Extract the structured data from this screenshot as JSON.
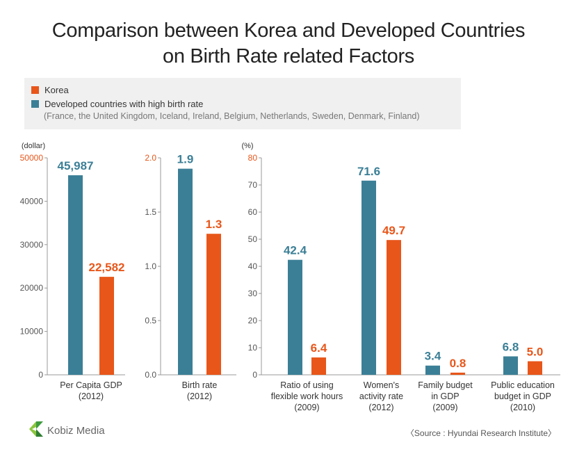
{
  "title_line1": "Comparison between Korea and Developed Countries",
  "title_line2": "on Birth Rate related Factors",
  "legend": {
    "korea": "Korea",
    "developed": "Developed countries with high birth rate",
    "note": "(France,  the United Kingdom,  Iceland,  Ireland,  Belgium,  Netherlands,  Sweden,  Denmark,  Finland)"
  },
  "colors": {
    "korea": "#e8561a",
    "developed": "#3b7f96"
  },
  "logo_text": "Kobiz Media",
  "source": "〈Source : Hyundai Research Institute〉",
  "chart_data": [
    {
      "type": "bar",
      "ylabel": "(dollar)",
      "ylim": [
        0,
        50000
      ],
      "yticks": [
        "0",
        "10000",
        "20000",
        "30000",
        "40000",
        "50000"
      ],
      "categories": [
        [
          "Per Capita GDP",
          "(2012)"
        ]
      ],
      "series": [
        {
          "name": "Developed countries with high birth rate",
          "values": [
            45987
          ],
          "labels": [
            "45,987"
          ]
        },
        {
          "name": "Korea",
          "values": [
            22582
          ],
          "labels": [
            "22,582"
          ]
        }
      ]
    },
    {
      "type": "bar",
      "ylabel": "",
      "ylim": [
        0,
        2.0
      ],
      "yticks": [
        "0.0",
        "0.5",
        "1.0",
        "1.5",
        "2.0"
      ],
      "categories": [
        [
          "Birth rate",
          "(2012)"
        ]
      ],
      "series": [
        {
          "name": "Developed countries with high birth rate",
          "values": [
            1.9
          ],
          "labels": [
            "1.9"
          ]
        },
        {
          "name": "Korea",
          "values": [
            1.3
          ],
          "labels": [
            "1.3"
          ]
        }
      ]
    },
    {
      "type": "bar",
      "ylabel": "(%)",
      "ylim": [
        0,
        80
      ],
      "yticks": [
        "0",
        "10",
        "20",
        "30",
        "40",
        "50",
        "60",
        "70",
        "80"
      ],
      "categories": [
        [
          "Ratio of using",
          "flexible work hours",
          "(2009)"
        ],
        [
          "Women's",
          "activity rate",
          "(2012)"
        ],
        [
          "Family budget",
          "in GDP",
          "(2009)"
        ],
        [
          "Public education",
          "budget in GDP",
          "(2010)"
        ]
      ],
      "series": [
        {
          "name": "Developed countries with high birth rate",
          "values": [
            42.4,
            71.6,
            3.4,
            6.8
          ],
          "labels": [
            "42.4",
            "71.6",
            "3.4",
            "6.8"
          ]
        },
        {
          "name": "Korea",
          "values": [
            6.4,
            49.7,
            0.8,
            5.0
          ],
          "labels": [
            "6.4",
            "49.7",
            "0.8",
            "5.0"
          ]
        }
      ]
    }
  ]
}
